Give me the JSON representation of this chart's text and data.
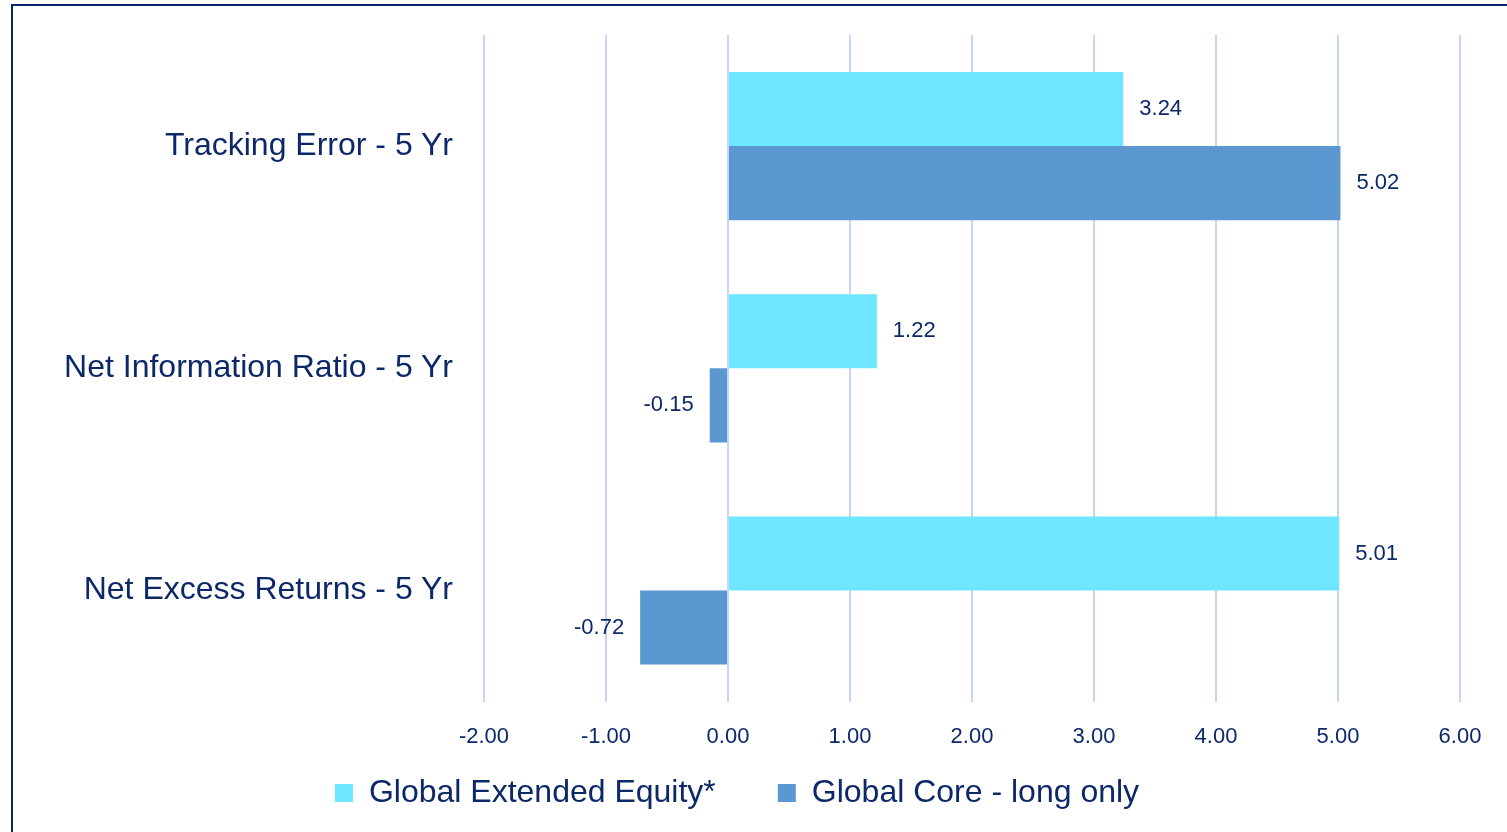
{
  "chart_data": {
    "type": "bar",
    "orientation": "horizontal",
    "categories": [
      "Tracking Error - 5 Yr",
      "Net Information Ratio - 5 Yr",
      "Net Excess Returns - 5 Yr"
    ],
    "series": [
      {
        "name": "Global Extended Equity*",
        "color": "#6fe6ff",
        "values": [
          3.24,
          1.22,
          5.01
        ]
      },
      {
        "name": "Global Core - long only",
        "color": "#5b98d2",
        "values": [
          5.02,
          -0.15,
          -0.72
        ]
      }
    ],
    "xlim": [
      -2,
      6
    ],
    "xticks": [
      {
        "value": -2,
        "label": "-2.00"
      },
      {
        "value": -1,
        "label": "-1.00"
      },
      {
        "value": 0,
        "label": "0.00"
      },
      {
        "value": 1,
        "label": "1.00"
      },
      {
        "value": 2,
        "label": "2.00"
      },
      {
        "value": 3,
        "label": "3.00"
      },
      {
        "value": 4,
        "label": "4.00"
      },
      {
        "value": 5,
        "label": "5.00"
      },
      {
        "value": 6,
        "label": "6.00"
      }
    ],
    "grid": "x",
    "legend": "bottom",
    "data_labels": true
  }
}
